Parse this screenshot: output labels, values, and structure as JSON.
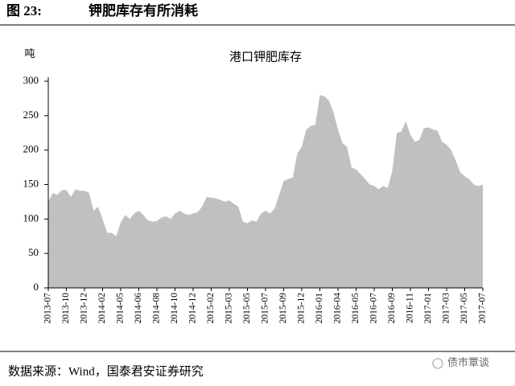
{
  "header": {
    "label": "图 23:",
    "title": "钾肥库存有所消耗"
  },
  "chart_data": {
    "type": "area",
    "title": "港口钾肥库存",
    "ylabel": "吨",
    "categories": [
      "2013-07",
      null,
      null,
      null,
      "2013-10",
      null,
      null,
      null,
      "2013-12",
      null,
      null,
      null,
      "2014-02",
      null,
      null,
      null,
      "2014-05",
      null,
      null,
      null,
      "2014-06",
      null,
      null,
      null,
      "2014-08",
      null,
      null,
      null,
      "2014-10",
      null,
      null,
      null,
      "2014-12",
      null,
      null,
      null,
      "2015-02",
      null,
      null,
      null,
      "2015-03",
      null,
      null,
      null,
      "2015-05",
      null,
      null,
      null,
      "2015-07",
      null,
      null,
      null,
      "2015-09",
      null,
      null,
      null,
      "2015-12",
      null,
      null,
      null,
      "2016-01",
      null,
      null,
      null,
      "2016-04",
      null,
      null,
      null,
      "2016-05",
      null,
      null,
      null,
      "2016-07",
      null,
      null,
      null,
      "2016-09",
      null,
      null,
      null,
      "2016-11",
      null,
      null,
      null,
      "2017-01",
      null,
      null,
      null,
      "2017-03",
      null,
      null,
      null,
      "2017-05",
      null,
      null,
      null,
      "2017-07"
    ],
    "values": [
      125,
      138,
      135,
      142,
      142,
      132,
      143,
      141,
      141,
      138,
      112,
      118,
      100,
      80,
      80,
      75,
      95,
      106,
      100,
      108,
      112,
      106,
      98,
      96,
      97,
      102,
      104,
      100,
      108,
      112,
      108,
      106,
      108,
      110,
      118,
      132,
      131,
      130,
      128,
      125,
      127,
      122,
      118,
      96,
      94,
      98,
      96,
      108,
      112,
      108,
      115,
      135,
      155,
      158,
      160,
      195,
      205,
      230,
      235,
      237,
      280,
      278,
      272,
      255,
      230,
      210,
      205,
      175,
      172,
      165,
      158,
      150,
      148,
      143,
      148,
      145,
      170,
      225,
      227,
      242,
      222,
      212,
      215,
      232,
      233,
      230,
      228,
      212,
      208,
      200,
      185,
      168,
      162,
      158,
      150,
      148,
      150
    ],
    "color": "#c0c0c0",
    "ylim": [
      0,
      300
    ],
    "yticks": [
      0,
      50,
      100,
      150,
      200,
      250,
      300
    ],
    "grid": false
  },
  "footer": {
    "source": "数据来源：Wind，国泰君安证券研究",
    "watermark": "债市覃谈"
  }
}
